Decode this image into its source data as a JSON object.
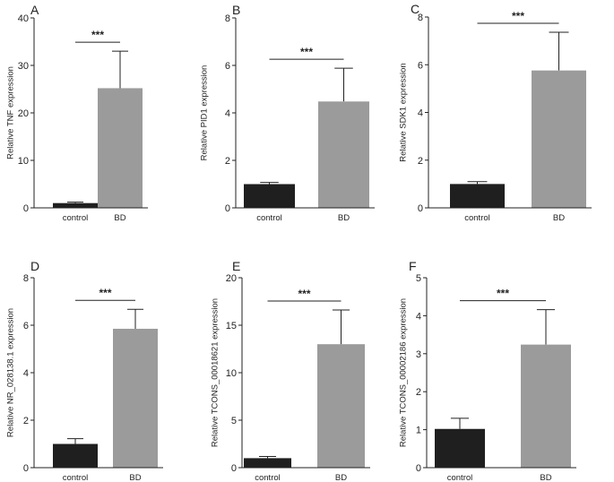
{
  "figure": {
    "colors": {
      "axis": "#222222",
      "control": "#1f1f1f",
      "bd": "#9b9b9b"
    }
  },
  "chart_data": [
    {
      "type": "bar",
      "panel": "A",
      "categories": [
        "control",
        "BD"
      ],
      "values": [
        1.0,
        25.2
      ],
      "errors": [
        0.2,
        7.8
      ],
      "ylabel": "Relative TNF expression",
      "ylim": [
        0,
        40
      ],
      "yticks": [
        0,
        10,
        20,
        30,
        40
      ],
      "significance": "***"
    },
    {
      "type": "bar",
      "panel": "B",
      "categories": [
        "control",
        "BD"
      ],
      "values": [
        1.0,
        4.48
      ],
      "errors": [
        0.07,
        1.4
      ],
      "ylabel": "Relative PID1 expression",
      "ylim": [
        0,
        8
      ],
      "yticks": [
        0,
        2,
        4,
        6,
        8
      ],
      "significance": "***"
    },
    {
      "type": "bar",
      "panel": "C",
      "categories": [
        "control",
        "BD"
      ],
      "values": [
        1.0,
        5.76
      ],
      "errors": [
        0.1,
        1.6
      ],
      "ylabel": "Relative SDK1 expression",
      "ylim": [
        0,
        8
      ],
      "yticks": [
        0,
        2,
        4,
        6,
        8
      ],
      "significance": "***"
    },
    {
      "type": "bar",
      "panel": "D",
      "categories": [
        "control",
        "BD"
      ],
      "values": [
        1.0,
        5.85
      ],
      "errors": [
        0.22,
        0.82
      ],
      "ylabel": "Relative NR_028138.1 expression",
      "ylim": [
        0,
        8
      ],
      "yticks": [
        0,
        2,
        4,
        6,
        8
      ],
      "significance": "***"
    },
    {
      "type": "bar",
      "panel": "E",
      "categories": [
        "control",
        "BD"
      ],
      "values": [
        1.0,
        13.0
      ],
      "errors": [
        0.18,
        3.6
      ],
      "ylabel": "Relative TCONS_00018621 expression",
      "ylim": [
        0,
        20
      ],
      "yticks": [
        0,
        5,
        10,
        15,
        20
      ],
      "significance": "***"
    },
    {
      "type": "bar",
      "panel": "F",
      "categories": [
        "control",
        "BD"
      ],
      "values": [
        1.02,
        3.24
      ],
      "errors": [
        0.28,
        0.92
      ],
      "ylabel": "Relative TCONS_00002186 expression",
      "ylim": [
        0,
        5
      ],
      "yticks": [
        0,
        1,
        2,
        3,
        4,
        5
      ],
      "significance": "***"
    }
  ]
}
